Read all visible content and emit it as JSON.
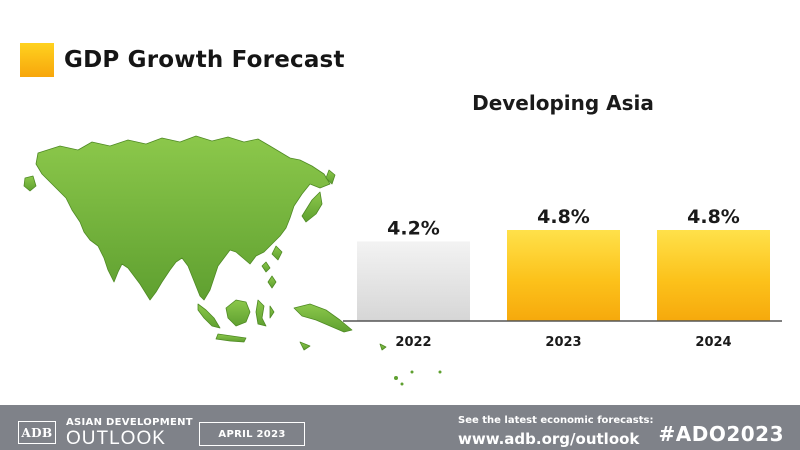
{
  "header": {
    "title": "GDP Growth Forecast"
  },
  "chart_data": {
    "type": "bar",
    "title": "Developing Asia",
    "categories": [
      "2022",
      "2023",
      "2024"
    ],
    "values": [
      4.2,
      4.8,
      4.8
    ],
    "value_labels": [
      "4.2%",
      "4.8%",
      "4.8%"
    ],
    "unit": "%",
    "ylim": [
      0,
      4.8
    ],
    "grid": false,
    "bar_colors": [
      "#e6e6e6",
      "#fcc21b",
      "#fcc21b"
    ]
  },
  "footer": {
    "logo_text": "ADB",
    "org_line1": "ASIAN DEVELOPMENT",
    "org_line2": "OUTLOOK",
    "date": "APRIL 2023",
    "see_text": "See the latest economic forecasts:",
    "url": "www.adb.org/outlook",
    "hashtag": "#ADO2023"
  },
  "colors": {
    "accent_yellow": "#fcc21b",
    "bar_grey": "#e6e6e6",
    "map_green": "#7cbb3c",
    "footer_bg": "#7f8289"
  }
}
